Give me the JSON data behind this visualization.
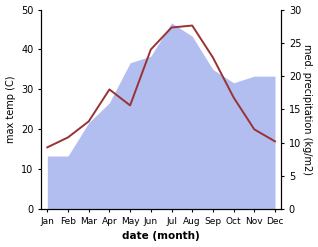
{
  "months": [
    "Jan",
    "Feb",
    "Mar",
    "Apr",
    "May",
    "Jun",
    "Jul",
    "Aug",
    "Sep",
    "Oct",
    "Nov",
    "Dec"
  ],
  "temp": [
    15.5,
    18.0,
    22.0,
    30.0,
    26.0,
    40.0,
    45.5,
    46.0,
    38.0,
    28.0,
    20.0,
    17.0
  ],
  "precip": [
    8.0,
    8.0,
    13.0,
    16.0,
    22.0,
    23.0,
    28.0,
    26.0,
    21.0,
    19.0,
    20.0,
    20.0
  ],
  "temp_color": "#993333",
  "precip_fill_color": "#b3bef0",
  "background_color": "#ffffff",
  "xlabel": "date (month)",
  "ylabel_left": "max temp (C)",
  "ylabel_right": "med. precipitation (kg/m2)",
  "ylim_left": [
    0,
    50
  ],
  "ylim_right": [
    0,
    30
  ],
  "yticks_left": [
    0,
    10,
    20,
    30,
    40,
    50
  ],
  "yticks_right": [
    0,
    5,
    10,
    15,
    20,
    25,
    30
  ],
  "figsize": [
    3.18,
    2.47
  ],
  "dpi": 100
}
